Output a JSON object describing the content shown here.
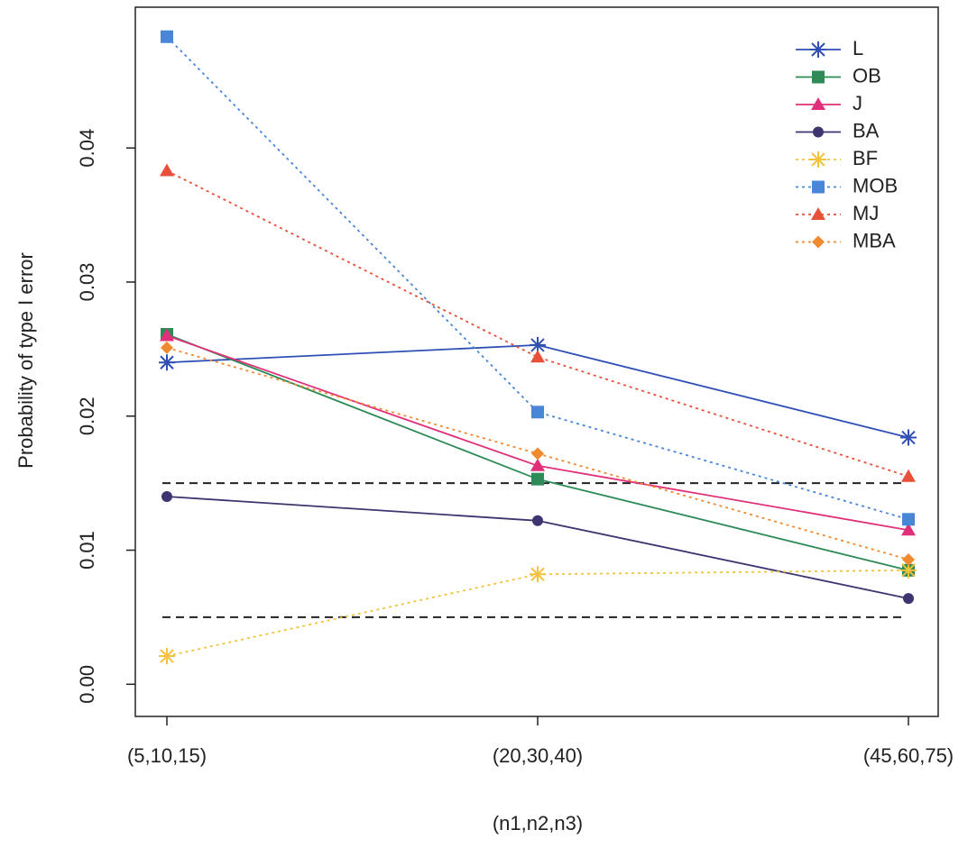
{
  "chart_data": {
    "type": "line",
    "x_label": "(n1,n2,n3)",
    "y_label": "Probability of type I error",
    "categories": [
      "(5,10,15)",
      "(20,30,40)",
      "(45,60,75)"
    ],
    "ylim": [
      -0.0024,
      0.0505
    ],
    "yticks": [
      {
        "value": 0,
        "label": "0.00"
      },
      0.01,
      0.02,
      0.03,
      0.04
    ],
    "hlines": [
      0.015,
      0.005
    ],
    "legend": "top-right",
    "series": [
      {
        "name": "L",
        "color": "#2f4fb5",
        "marker": "asterisk",
        "dashed": false,
        "values": [
          0.024,
          0.0253,
          0.0184
        ]
      },
      {
        "name": "OB",
        "color": "#2e8b57",
        "marker": "square",
        "dashed": false,
        "values": [
          0.0261,
          0.0153,
          0.0085
        ]
      },
      {
        "name": "J",
        "color": "#e0307a",
        "marker": "triangle",
        "dashed": false,
        "values": [
          0.026,
          0.0163,
          0.0115
        ]
      },
      {
        "name": "BA",
        "color": "#3d3570",
        "marker": "circle",
        "dashed": false,
        "values": [
          0.014,
          0.0122,
          0.0064
        ]
      },
      {
        "name": "BF",
        "color": "#f2c23a",
        "marker": "asterisk",
        "dashed": true,
        "values": [
          0.0021,
          0.0082,
          0.0085
        ]
      },
      {
        "name": "MOB",
        "color": "#4a86d8",
        "marker": "square",
        "dashed": true,
        "values": [
          0.0483,
          0.0203,
          0.0123
        ]
      },
      {
        "name": "MJ",
        "color": "#e8503a",
        "marker": "triangle",
        "dashed": true,
        "values": [
          0.0383,
          0.0244,
          0.0155
        ]
      },
      {
        "name": "MBA",
        "color": "#f08a30",
        "marker": "diamond",
        "dashed": true,
        "values": [
          0.0251,
          0.0172,
          0.0093
        ]
      }
    ]
  }
}
